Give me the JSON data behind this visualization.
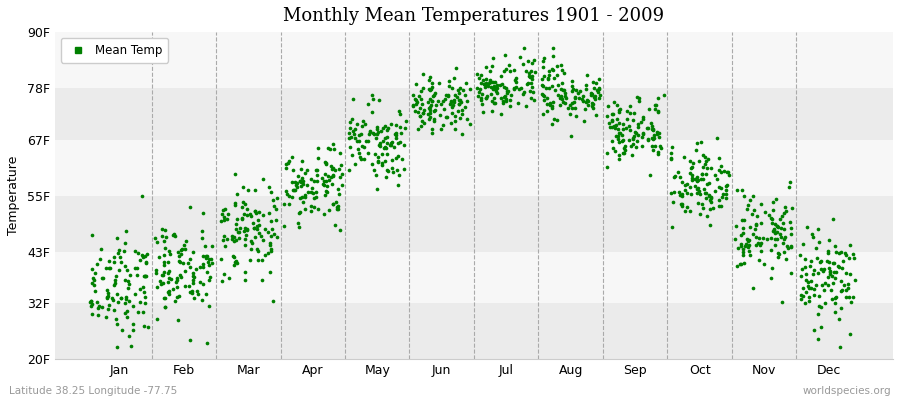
{
  "title": "Monthly Mean Temperatures 1901 - 2009",
  "ylabel": "Temperature",
  "xlabel_bottom_left": "Latitude 38.25 Longitude -77.75",
  "xlabel_bottom_right": "worldspecies.org",
  "dot_color": "#008000",
  "dot_size": 7,
  "background_color": "#ffffff",
  "plot_bg_color": "#ffffff",
  "yticks": [
    20,
    32,
    43,
    55,
    67,
    78,
    90
  ],
  "ytick_labels": [
    "20F",
    "32F",
    "43F",
    "55F",
    "67F",
    "78F",
    "90F"
  ],
  "ylim": [
    20,
    90
  ],
  "months": [
    "Jan",
    "Feb",
    "Mar",
    "Apr",
    "May",
    "Jun",
    "Jul",
    "Aug",
    "Sep",
    "Oct",
    "Nov",
    "Dec"
  ],
  "num_years": 109,
  "monthly_means": [
    36.0,
    38.5,
    47.0,
    57.0,
    66.5,
    74.5,
    78.5,
    77.0,
    69.5,
    58.0,
    47.0,
    37.5
  ],
  "monthly_stds": [
    5.5,
    5.5,
    5.0,
    4.0,
    3.5,
    3.0,
    2.5,
    3.0,
    3.5,
    4.0,
    4.5,
    5.5
  ],
  "trend_slope": 0.03,
  "seed": 12
}
